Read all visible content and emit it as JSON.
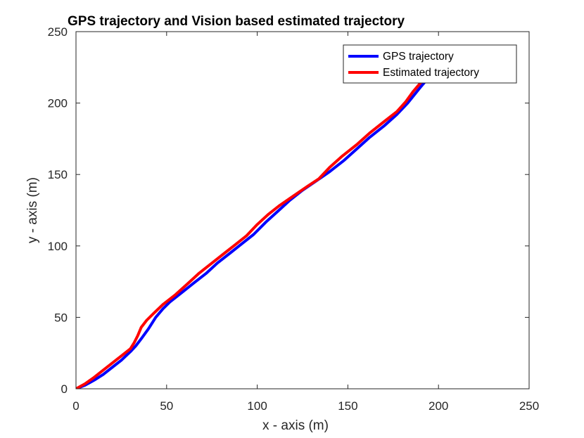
{
  "chart_data": {
    "type": "line",
    "title": "GPS trajectory and Vision based estimated trajectory",
    "xlabel": "x - axis (m)",
    "ylabel": "y - axis (m)",
    "xlim": [
      0,
      250
    ],
    "ylim": [
      0,
      250
    ],
    "xticks": [
      "0",
      "50",
      "100",
      "150",
      "200",
      "250"
    ],
    "yticks": [
      "0",
      "50",
      "100",
      "150",
      "200",
      "250"
    ],
    "grid": false,
    "legend_position": "top-right",
    "series": [
      {
        "name": "GPS trajectory",
        "color": "#0000ff",
        "x": [
          0,
          5,
          10,
          15,
          20,
          25,
          30,
          33,
          36,
          40,
          44,
          48,
          52,
          58,
          65,
          72,
          78,
          85,
          92,
          98,
          105,
          112,
          118,
          125,
          132,
          140,
          148,
          155,
          162,
          170,
          177,
          183,
          190,
          194
        ],
        "y": [
          0,
          2.5,
          6,
          10,
          15,
          20,
          26,
          30,
          35,
          42,
          50,
          56,
          61,
          67,
          74,
          81,
          88,
          95,
          102,
          108,
          117,
          125,
          132,
          139,
          145,
          152,
          160,
          168,
          176,
          184,
          192,
          200,
          211,
          217
        ]
      },
      {
        "name": "Estimated trajectory",
        "color": "#ff0000",
        "x": [
          0,
          5,
          10,
          15,
          20,
          25,
          30,
          32,
          34,
          36,
          39,
          43,
          48,
          55,
          62,
          68,
          75,
          82,
          88,
          94,
          100,
          106,
          112,
          120,
          128,
          134,
          140,
          147,
          155,
          162,
          170,
          177,
          182,
          186,
          190,
          194
        ],
        "y": [
          0,
          3.5,
          8,
          13,
          18,
          23,
          28,
          32,
          37,
          43,
          48,
          53,
          59,
          66,
          74,
          81,
          88,
          95,
          101,
          107,
          115,
          122,
          128,
          135,
          142,
          147,
          155,
          163,
          171,
          179,
          187,
          194,
          201,
          208,
          214,
          220
        ]
      }
    ]
  }
}
